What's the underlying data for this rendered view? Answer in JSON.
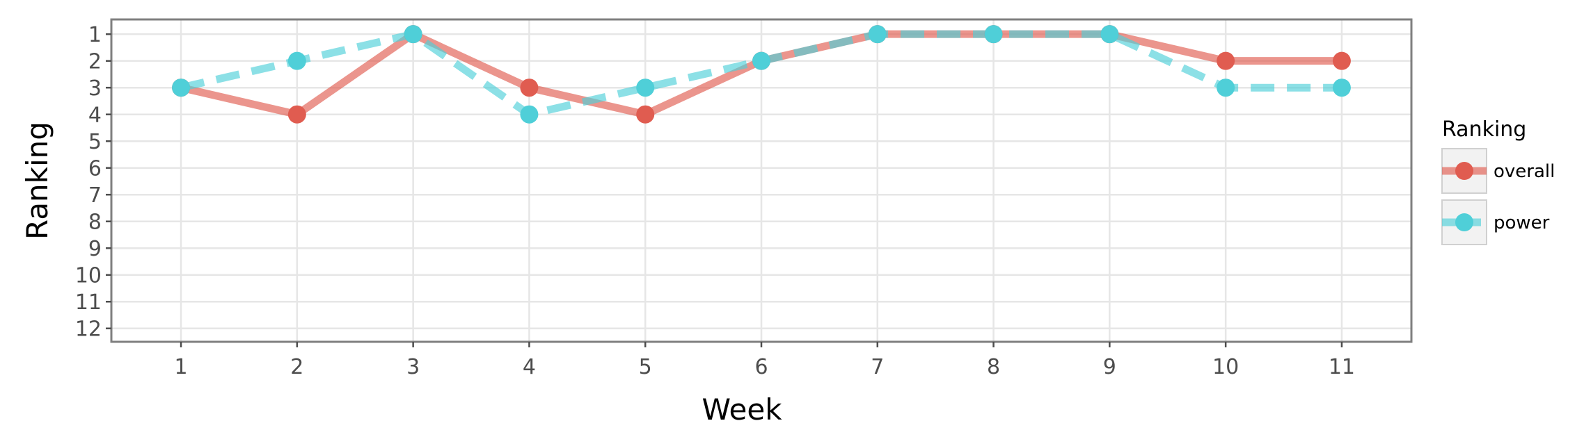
{
  "chart_data": {
    "type": "line",
    "xlabel": "Week",
    "ylabel": "Ranking",
    "x": [
      1,
      2,
      3,
      4,
      5,
      6,
      7,
      8,
      9,
      10,
      11
    ],
    "xlim": [
      0.4,
      11.6
    ],
    "ylim": [
      12.5,
      0.45
    ],
    "y_reversed": true,
    "yticks": [
      1,
      2,
      3,
      4,
      5,
      6,
      7,
      8,
      9,
      10,
      11,
      12
    ],
    "grid": true,
    "legend": {
      "title": "Ranking",
      "placement": "right"
    },
    "series": [
      {
        "name": "overall",
        "values": [
          3,
          4,
          1,
          3,
          4,
          2,
          1,
          1,
          1,
          2,
          2
        ],
        "color": "#e05c50",
        "line": "solid"
      },
      {
        "name": "power",
        "values": [
          3,
          2,
          1,
          4,
          3,
          2,
          1,
          1,
          1,
          3,
          3
        ],
        "color": "#4fcfd8",
        "line": "dashed"
      }
    ]
  }
}
